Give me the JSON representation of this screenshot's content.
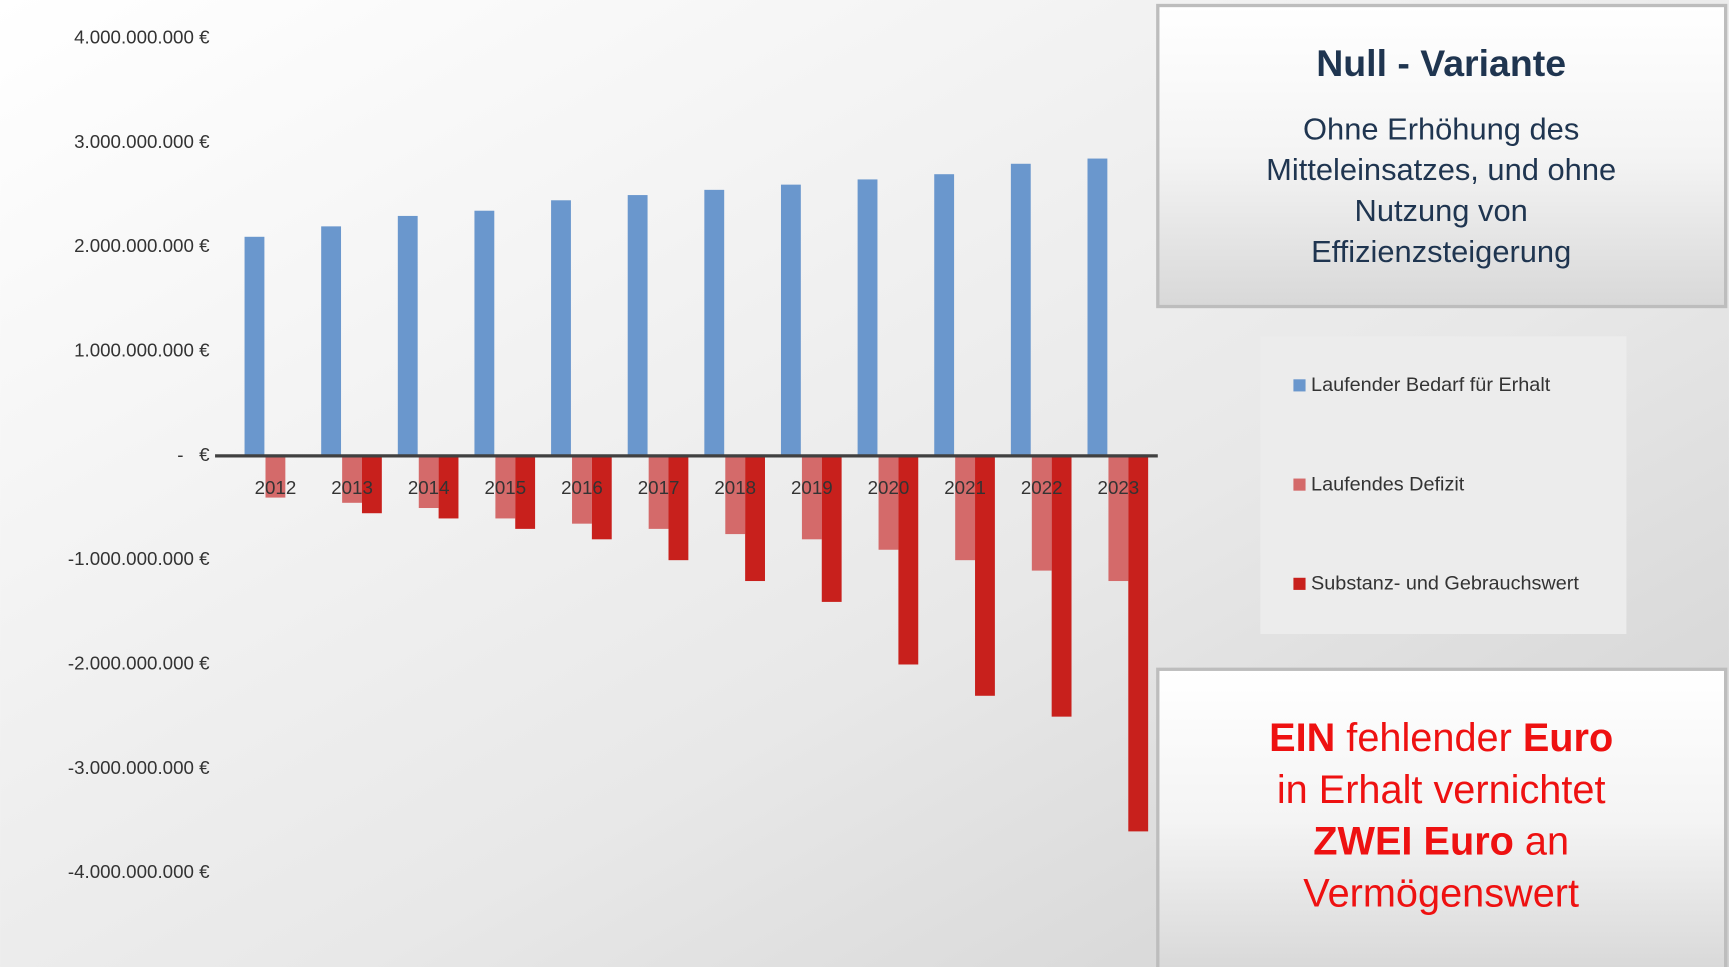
{
  "chart_data": {
    "type": "bar",
    "categories": [
      "2012",
      "2013",
      "2014",
      "2015",
      "2016",
      "2017",
      "2018",
      "2019",
      "2020",
      "2021",
      "2022",
      "2023"
    ],
    "series": [
      {
        "name": "Laufender Bedarf für Erhalt",
        "color": "#6a97cd",
        "values": [
          2100000000,
          2200000000,
          2300000000,
          2350000000,
          2450000000,
          2500000000,
          2550000000,
          2600000000,
          2650000000,
          2700000000,
          2800000000,
          2850000000
        ]
      },
      {
        "name": "Laufendes Defizit",
        "color": "#d46a6a",
        "values": [
          -400000000,
          -450000000,
          -500000000,
          -600000000,
          -650000000,
          -700000000,
          -750000000,
          -800000000,
          -900000000,
          -1000000000,
          -1100000000,
          -1200000000
        ]
      },
      {
        "name": "Substanz- und Gebrauchswert",
        "color": "#c8201c",
        "values": [
          0,
          -550000000,
          -600000000,
          -700000000,
          -800000000,
          -1000000000,
          -1200000000,
          -1400000000,
          -2000000000,
          -2300000000,
          -2500000000,
          -3600000000
        ]
      }
    ],
    "ylim": [
      -4900000000,
      4370000000
    ],
    "yticks": [
      {
        "value": 4000000000,
        "label": "4.000.000.000 €"
      },
      {
        "value": 3000000000,
        "label": "3.000.000.000 €"
      },
      {
        "value": 2000000000,
        "label": "2.000.000.000 €"
      },
      {
        "value": 1000000000,
        "label": "1.000.000.000 €"
      },
      {
        "value": 0,
        "label": "-   €"
      },
      {
        "value": -1000000000,
        "label": "-1.000.000.000 €"
      },
      {
        "value": -2000000000,
        "label": "-2.000.000.000 €"
      },
      {
        "value": -3000000000,
        "label": "-3.000.000.000 €"
      },
      {
        "value": -4000000000,
        "label": "-4.000.000.000 €"
      }
    ],
    "legend": "right"
  },
  "panel": {
    "title": "Null - Variante",
    "subtitle_lines": [
      "Ohne Erhöhung des",
      "Mitteleinsatzes, und ohne",
      "Nutzung von",
      "Effizienzsteigerung"
    ]
  },
  "message_lines": [
    [
      {
        "text": "EIN",
        "bold": true
      },
      {
        "text": " fehlender ",
        "bold": false
      },
      {
        "text": "Euro",
        "bold": true
      }
    ],
    [
      {
        "text": "in Erhalt vernichtet",
        "bold": false
      }
    ],
    [
      {
        "text": "ZWEI Euro",
        "bold": true
      },
      {
        "text": " an",
        "bold": false
      }
    ],
    [
      {
        "text": "Vermögenswert",
        "bold": false
      }
    ]
  ]
}
